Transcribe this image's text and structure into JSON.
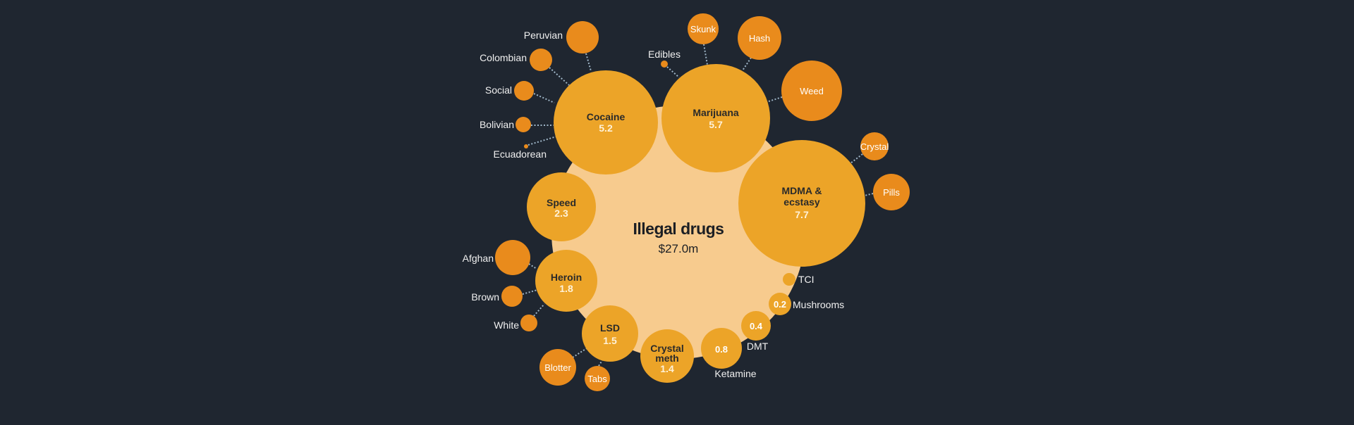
{
  "colors": {
    "background": "#1f2630",
    "center": "#f7cb8e",
    "category": "#eca428",
    "sub": "#e98b1c"
  },
  "chart_data": {
    "type": "bubble",
    "title": "Illegal drugs",
    "total_label": "$27.0m",
    "total": 27.0,
    "categories": [
      {
        "key": "cocaine",
        "label": "Cocaine",
        "value": 5.2,
        "value_label": "5.2",
        "subs": [
          {
            "key": "peruvian",
            "label": "Peruvian"
          },
          {
            "key": "colombian",
            "label": "Colombian"
          },
          {
            "key": "social",
            "label": "Social"
          },
          {
            "key": "bolivian",
            "label": "Bolivian"
          },
          {
            "key": "ecuadorean",
            "label": "Ecuadorean"
          }
        ]
      },
      {
        "key": "marijuana",
        "label": "Marijuana",
        "value": 5.7,
        "value_label": "5.7",
        "subs": [
          {
            "key": "edibles",
            "label": "Edibles"
          },
          {
            "key": "skunk",
            "label": "Skunk"
          },
          {
            "key": "hash",
            "label": "Hash"
          },
          {
            "key": "weed",
            "label": "Weed"
          }
        ]
      },
      {
        "key": "mdma",
        "label": "MDMA &",
        "label2": "ecstasy",
        "value": 7.7,
        "value_label": "7.7",
        "subs": [
          {
            "key": "crystal",
            "label": "Crystal"
          },
          {
            "key": "pills",
            "label": "Pills"
          }
        ]
      },
      {
        "key": "speed",
        "label": "Speed",
        "value": 2.3,
        "value_label": "2.3",
        "subs": []
      },
      {
        "key": "heroin",
        "label": "Heroin",
        "value": 1.8,
        "value_label": "1.8",
        "subs": [
          {
            "key": "afghan",
            "label": "Afghan"
          },
          {
            "key": "brown",
            "label": "Brown"
          },
          {
            "key": "white",
            "label": "White"
          }
        ]
      },
      {
        "key": "lsd",
        "label": "LSD",
        "value": 1.5,
        "value_label": "1.5",
        "subs": [
          {
            "key": "blotter",
            "label": "Blotter"
          },
          {
            "key": "tabs",
            "label": "Tabs"
          }
        ]
      },
      {
        "key": "crystalmeth",
        "label": "Crystal",
        "label2": "meth",
        "value": 1.4,
        "value_label": "1.4",
        "subs": []
      },
      {
        "key": "ketamine",
        "label": "Ketamine",
        "value": 0.8,
        "value_label": "0.8",
        "subs": []
      },
      {
        "key": "dmt",
        "label": "DMT",
        "value": 0.4,
        "value_label": "0.4",
        "subs": []
      },
      {
        "key": "mushrooms",
        "label": "Mushrooms",
        "value": 0.2,
        "value_label": "0.2",
        "subs": []
      },
      {
        "key": "tci",
        "label": "TCI",
        "value": null,
        "value_label": "",
        "subs": []
      }
    ]
  }
}
